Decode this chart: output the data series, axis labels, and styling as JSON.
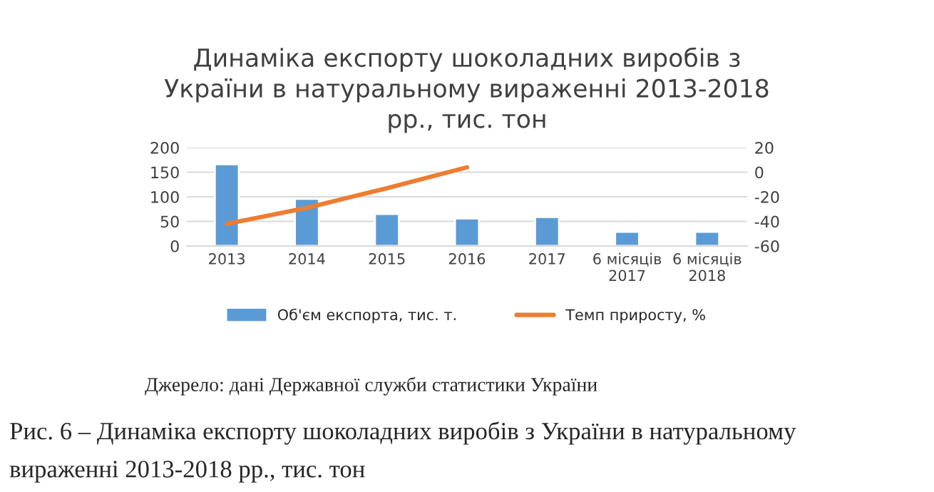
{
  "chart_data": {
    "type": "bar",
    "title": "Динаміка експорту шоколадних виробів з\nУкраїни в натуральному вираженні 2013-2018\nрр., тис. тон",
    "categories": [
      "2013",
      "2014",
      "2015",
      "2016",
      "2017",
      "6 місяців\n2017",
      "6 місяців\n2018"
    ],
    "series": [
      {
        "name": "Об'єм експорта, тис. т.",
        "color": "#5b9bd5",
        "values": [
          166,
          96,
          65,
          56,
          59,
          29,
          29
        ]
      },
      {
        "name": "Темп приросту, %",
        "type": "line",
        "axis": "y2",
        "color": "#ed7d31",
        "values": [
          -42,
          -29,
          -13,
          4,
          null,
          null,
          null
        ]
      }
    ],
    "ylim": [
      0,
      200
    ],
    "yticks": [
      0,
      50,
      100,
      150,
      200
    ],
    "y2lim": [
      -60,
      20
    ],
    "y2ticks": [
      -60,
      -40,
      -20,
      0,
      20
    ],
    "grid": "y",
    "legend": "bottom",
    "marker": "none",
    "line_style": "solid",
    "annotations": [
      "Джерело: дані Державної служби статистики України",
      "Рис. 6 – Динаміка експорту шоколадних виробів з України в натуральному\nвираженні 2013-2018 рр., тис. тон"
    ]
  }
}
